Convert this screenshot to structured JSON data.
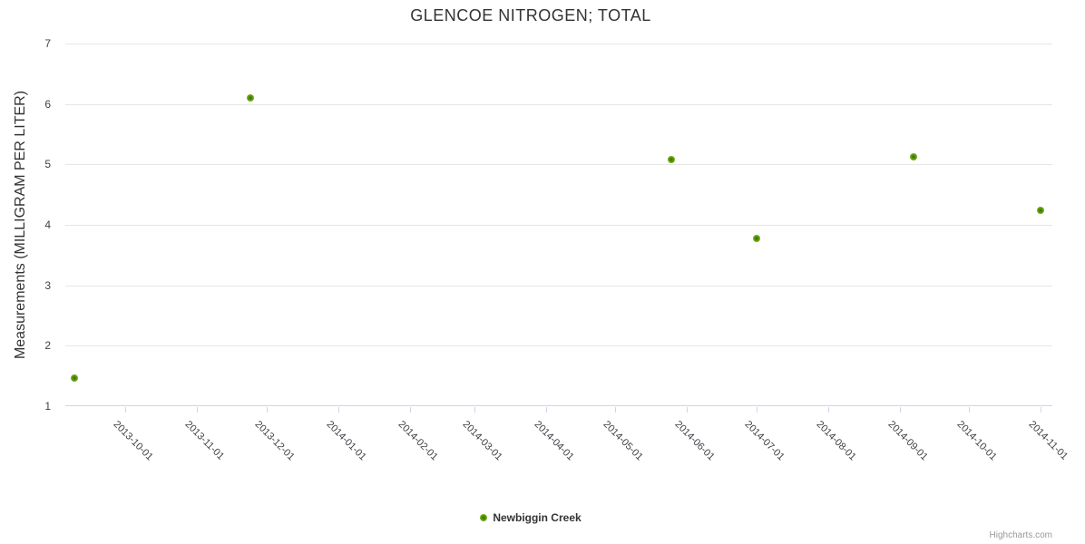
{
  "title": "GLENCOE NITROGEN; TOTAL",
  "credits": "Highcharts.com",
  "legend": {
    "items": [
      {
        "label": "Newbiggin Creek",
        "color": "#76b20c"
      }
    ]
  },
  "colors": {
    "series_green": "#76b20c",
    "grid": "#e6e6e6",
    "axis_line": "#ccd6eb",
    "title_text": "#333333",
    "label_text": "#3e4146",
    "credits_text": "#999999"
  },
  "chart_data": {
    "type": "scatter",
    "title": "GLENCOE NITROGEN; TOTAL",
    "xlabel": "",
    "ylabel": "Measurements (MILLIGRAM PER LITER)",
    "ylim": [
      1,
      7
    ],
    "y_ticks": [
      1,
      2,
      3,
      4,
      5,
      6,
      7
    ],
    "x_ticks": [
      "2013-10-01",
      "2013-11-01",
      "2013-12-01",
      "2014-01-01",
      "2014-02-01",
      "2014-03-01",
      "2014-04-01",
      "2014-05-01",
      "2014-06-01",
      "2014-07-01",
      "2014-08-01",
      "2014-09-01",
      "2014-10-01",
      "2014-11-01"
    ],
    "x_range": [
      "2013-09-05",
      "2014-11-06"
    ],
    "grid": "horizontal-only",
    "legend_position": "bottom-center",
    "series": [
      {
        "name": "Newbiggin Creek",
        "color": "#76b20c",
        "points": [
          {
            "x": "2013-09-09",
            "y": 1.46
          },
          {
            "x": "2013-11-24",
            "y": 6.1
          },
          {
            "x": "2014-05-25",
            "y": 5.08
          },
          {
            "x": "2014-07-01",
            "y": 3.77
          },
          {
            "x": "2014-09-07",
            "y": 5.12
          },
          {
            "x": "2014-11-01",
            "y": 4.24
          }
        ]
      }
    ]
  }
}
